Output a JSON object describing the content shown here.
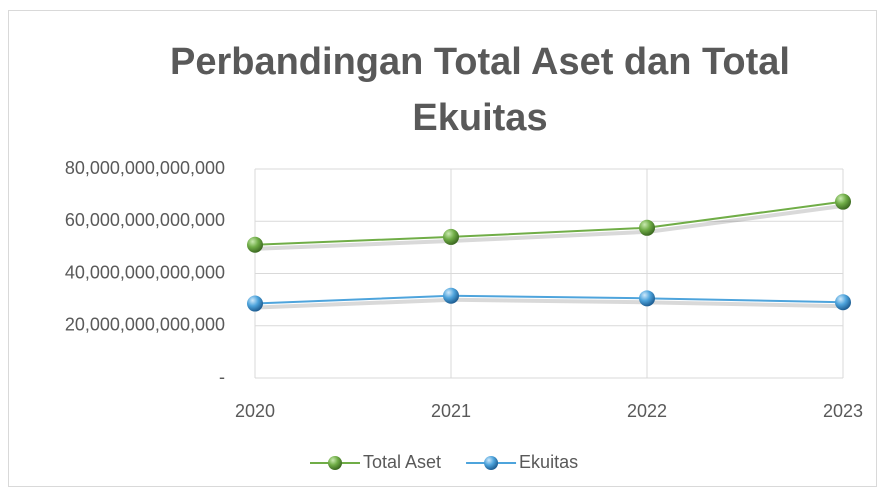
{
  "chart_data": {
    "type": "line",
    "title": "Perbandingan Total Aset dan Total Ekuitas",
    "categories": [
      "2020",
      "2021",
      "2022",
      "2023"
    ],
    "series": [
      {
        "name": "Total Aset",
        "color": "#70ad47",
        "values": [
          51000000000000,
          54000000000000,
          57500000000000,
          67500000000000
        ]
      },
      {
        "name": "Ekuitas",
        "color": "#4ea4dc",
        "values": [
          28500000000000,
          31500000000000,
          30500000000000,
          29000000000000
        ]
      }
    ],
    "ylim": [
      0,
      80000000000000
    ],
    "yticks": [
      {
        "value": 0,
        "label": "-"
      },
      {
        "value": 20000000000000,
        "label": "20,000,000,000,000"
      },
      {
        "value": 40000000000000,
        "label": "40,000,000,000,000"
      },
      {
        "value": 60000000000000,
        "label": "60,000,000,000,000"
      },
      {
        "value": 80000000000000,
        "label": "80,000,000,000,000"
      }
    ],
    "grid": true,
    "legend": "bottom"
  }
}
